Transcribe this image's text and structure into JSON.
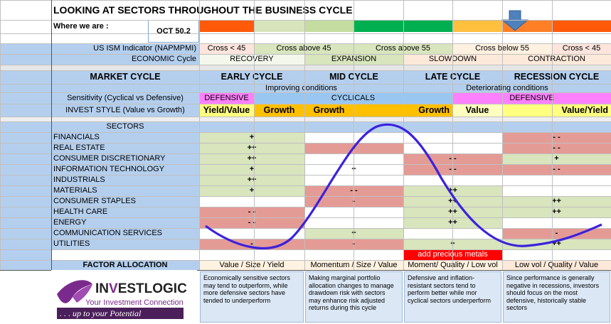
{
  "title": "LOOKING AT SECTORS THROUGHOUT THE BUSINESS CYCLE",
  "where_label": "Where we are :",
  "where_value": "OCT  50.2",
  "ism_label": "US ISM Indicator (NAPMPMI)",
  "ism_cells": [
    "Cross < 45",
    "Cross above 45",
    "Cross above 55",
    "Cross below 55",
    "Cross < 45"
  ],
  "econ_label": "ECONOMIC Cycle",
  "econ_cells": [
    "RECOVERY",
    "EXPANSION",
    "SLOWDOWN",
    "CONTRACTION"
  ],
  "market_label": "MARKET CYCLE",
  "market_cells": [
    "EARLY CYCLE",
    "MID CYCLE",
    "LATE CYCLE",
    "RECESSION CYCLE"
  ],
  "conditions": [
    "Improving conditions",
    "Deteriorating conditions"
  ],
  "sensitivity_label": "Sensitivity (Cyclical vs Defensive)",
  "sensitivity_cells": [
    "DEFENSIVE",
    "CYCLICALS",
    "DEFENSIVE"
  ],
  "style_label": "INVEST STYLE (Value vs Growth)",
  "style_cells": [
    "Yield/Value",
    "Growth",
    "Growth",
    "Growth",
    "Value",
    "Value/Yield"
  ],
  "sectors_header": "SECTORS",
  "sectors": [
    {
      "name": "FINANCIALS",
      "marks": [
        "+",
        "",
        "",
        "- -"
      ]
    },
    {
      "name": "REAL ESTATE",
      "marks": [
        "++",
        "-",
        "",
        "- -"
      ]
    },
    {
      "name": "CONSUMER DISCRETIONARY",
      "marks": [
        "++",
        "",
        "- -",
        "+"
      ]
    },
    {
      "name": "INFORMATION TECHNOLOGY",
      "marks": [
        "+",
        "+",
        "- -",
        "- -"
      ]
    },
    {
      "name": "INDUSTRIALS",
      "marks": [
        "++",
        "",
        "",
        ""
      ]
    },
    {
      "name": "MATERIALS",
      "marks": [
        "+",
        "- -",
        "++",
        ""
      ]
    },
    {
      "name": "CONSUMER STAPLES",
      "marks": [
        "",
        "-",
        "++",
        "++"
      ]
    },
    {
      "name": "HEALTH CARE",
      "marks": [
        "- -",
        "",
        "++",
        "++"
      ]
    },
    {
      "name": "ENERGY",
      "marks": [
        "- -",
        "",
        "++",
        ""
      ]
    },
    {
      "name": "COMMUNICATION SERVICES",
      "marks": [
        "",
        "+",
        "",
        "-"
      ]
    },
    {
      "name": "UTILITIES",
      "marks": [
        "-",
        "-",
        "+",
        "++"
      ]
    }
  ],
  "precious_metals": "add precious metals",
  "factor_label": "FACTOR ALLOCATION",
  "factor_cells": [
    "Value / Size / Yield",
    "Momentum / Size / Value",
    "Moment/ Quality / Low vol",
    "Low vol / Quality / Value"
  ],
  "notes": [
    "Economically sensitive sectors may tend to outperform, while more defensive sectors have tended to underperform",
    "Making marginal portfolio allocation changes to manage drawdown risk with sectors may enhance risk adjusted returns during this cycle",
    "Defensive and inflation-resistant sectors tend to perform better while mor cyclical sectors underperform",
    "Since performance is generally negative in recessions, investors should focus on the most defensive, historically stable sectors"
  ],
  "logo": {
    "name_part1": "IN",
    "name_part2": "ESTLOGIC",
    "tagline": "Your Investment Connection",
    "slogan": ". . . up to your Potential"
  },
  "marker": "down-arrow-icon",
  "colors": {
    "header_blue": "#b4cfee",
    "positive": "#d8e5bd",
    "negative": "#e59b95",
    "white": "#ffffff",
    "orange_style": "#ffc000",
    "yellow_style": "#ffff80",
    "defensive": "#ff80ff",
    "cyclicals": "#9ac7f2",
    "wave": "#3b22dd",
    "bar": [
      "#ff5a0a",
      "#d7e4bc",
      "#c5dca0",
      "#00b050",
      "#ffbf3f",
      "#ff7f27",
      "#ff5a0a"
    ]
  }
}
